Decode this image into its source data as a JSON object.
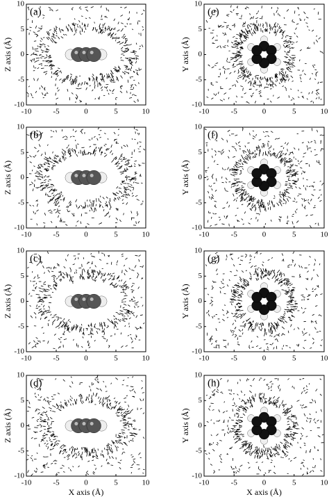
{
  "chart_data": [
    {
      "type": "quiver",
      "label": "(a)",
      "ylabel": "Z axis (Å)",
      "molecule": "linear",
      "xlim": [
        -10,
        10
      ],
      "ylim": [
        -10,
        10
      ],
      "xticks": [
        -10,
        -5,
        0,
        5,
        10
      ],
      "yticks": [
        -10,
        -5,
        0,
        5,
        10
      ]
    },
    {
      "type": "quiver",
      "label": "(b)",
      "ylabel": "Z axis (Å)",
      "molecule": "linear",
      "xlim": [
        -10,
        10
      ],
      "ylim": [
        -10,
        10
      ],
      "xticks": [
        -10,
        -5,
        0,
        5,
        10
      ],
      "yticks": [
        -10,
        -5,
        0,
        5,
        10
      ]
    },
    {
      "type": "quiver",
      "label": "(c)",
      "ylabel": "Z axis (Å)",
      "molecule": "linear",
      "xlim": [
        -10,
        10
      ],
      "ylim": [
        -10,
        10
      ],
      "xticks": [
        -10,
        -5,
        0,
        5,
        10
      ],
      "yticks": [
        -10,
        -5,
        0,
        5,
        10
      ]
    },
    {
      "type": "quiver",
      "label": "(d)",
      "ylabel": "Z axis (Å)",
      "xlabel": "X axis (Å)",
      "molecule": "linear",
      "xlim": [
        -10,
        10
      ],
      "ylim": [
        -10,
        10
      ],
      "xticks": [
        -10,
        -5,
        0,
        5,
        10
      ],
      "yticks": [
        -10,
        -5,
        0,
        5,
        10
      ]
    },
    {
      "type": "quiver",
      "label": "(e)",
      "ylabel": "Y axis (Å)",
      "molecule": "ring",
      "xlim": [
        -10,
        10
      ],
      "ylim": [
        -10,
        10
      ],
      "xticks": [
        -10,
        -5,
        0,
        5,
        10
      ],
      "yticks": [
        -10,
        -5,
        0,
        5,
        10
      ]
    },
    {
      "type": "quiver",
      "label": "(f)",
      "ylabel": "Y axis (Å)",
      "molecule": "ring",
      "xlim": [
        -10,
        10
      ],
      "ylim": [
        -10,
        10
      ],
      "xticks": [
        -10,
        -5,
        0,
        5,
        10
      ],
      "yticks": [
        -10,
        -5,
        0,
        5,
        10
      ]
    },
    {
      "type": "quiver",
      "label": "(g)",
      "ylabel": "Y axis (Å)",
      "molecule": "ring",
      "xlim": [
        -10,
        10
      ],
      "ylim": [
        -10,
        10
      ],
      "xticks": [
        -10,
        -5,
        0,
        5,
        10
      ],
      "yticks": [
        -10,
        -5,
        0,
        5,
        10
      ]
    },
    {
      "type": "quiver",
      "label": "(h)",
      "ylabel": "Y axis (Å)",
      "xlabel": "X axis (Å)",
      "molecule": "ring",
      "xlim": [
        -10,
        10
      ],
      "ylim": [
        -10,
        10
      ],
      "xticks": [
        -10,
        -5,
        0,
        5,
        10
      ],
      "yticks": [
        -10,
        -5,
        0,
        5,
        10
      ]
    }
  ]
}
